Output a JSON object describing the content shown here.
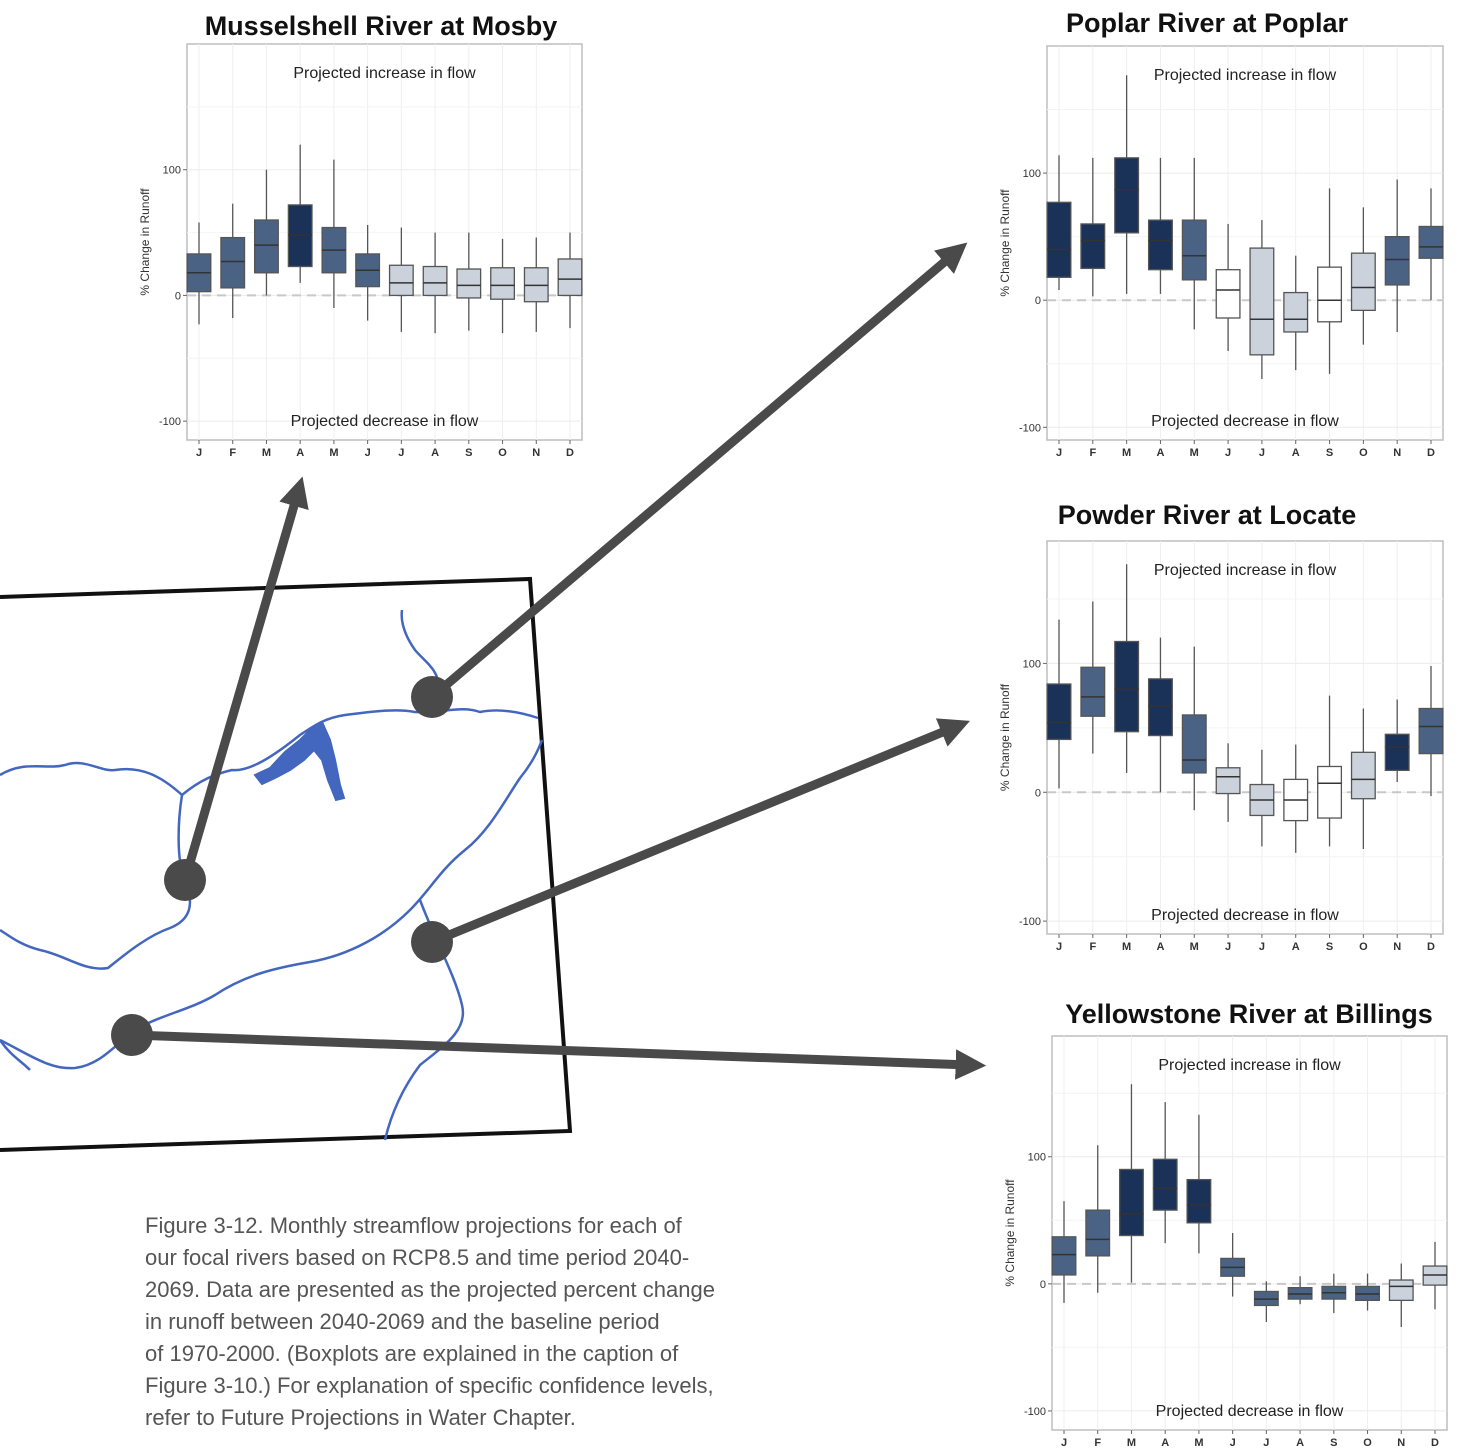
{
  "colors": {
    "dark": "#1a3258",
    "mid": "#4a6385",
    "light": "#cbd2dc",
    "white": "#ffffff",
    "river": "#4366bf",
    "arrow": "#4a4a4a"
  },
  "caption_lines": [
    "Figure 3-12. Monthly streamflow projections for each of",
    "our focal rivers based on RCP8.5 and time period 2040-",
    "2069. Data are presented as the projected percent change",
    "in runoff between 2040-2069 and the baseline period",
    "of 1970-2000. (Boxplots are explained in the caption of",
    "Figure 3-10.) For explanation of specific confidence levels,",
    "refer to Future Projections in Water Chapter."
  ],
  "chart_data": [
    {
      "type": "boxplot",
      "title": "Musselshell River at Mosby",
      "ylabel": "% Change in Runoff",
      "annotation_top": "Projected increase in flow",
      "annotation_bottom": "Projected decrease in flow",
      "categories": [
        "J",
        "F",
        "M",
        "A",
        "M",
        "J",
        "J",
        "A",
        "S",
        "O",
        "N",
        "D"
      ],
      "ylim": [
        -115,
        200
      ],
      "yticks": [
        -100,
        0,
        100
      ],
      "boxes": [
        {
          "min": -23,
          "q1": 3,
          "median": 18,
          "q3": 33,
          "max": 58,
          "color": "mid"
        },
        {
          "min": -18,
          "q1": 6,
          "median": 27,
          "q3": 46,
          "max": 73,
          "color": "mid"
        },
        {
          "min": 0,
          "q1": 18,
          "median": 40,
          "q3": 60,
          "max": 100,
          "color": "mid"
        },
        {
          "min": 10,
          "q1": 23,
          "median": 48,
          "q3": 72,
          "max": 120,
          "color": "dark"
        },
        {
          "min": -10,
          "q1": 18,
          "median": 36,
          "q3": 54,
          "max": 108,
          "color": "mid"
        },
        {
          "min": -20,
          "q1": 7,
          "median": 20,
          "q3": 33,
          "max": 56,
          "color": "mid"
        },
        {
          "min": -29,
          "q1": 0,
          "median": 10,
          "q3": 24,
          "max": 54,
          "color": "light"
        },
        {
          "min": -30,
          "q1": 0,
          "median": 10,
          "q3": 23,
          "max": 50,
          "color": "light"
        },
        {
          "min": -28,
          "q1": -2,
          "median": 8,
          "q3": 21,
          "max": 50,
          "color": "light"
        },
        {
          "min": -30,
          "q1": -3,
          "median": 8,
          "q3": 22,
          "max": 45,
          "color": "light"
        },
        {
          "min": -29,
          "q1": -5,
          "median": 8,
          "q3": 22,
          "max": 46,
          "color": "light"
        },
        {
          "min": -26,
          "q1": 0,
          "median": 13,
          "q3": 29,
          "max": 50,
          "color": "light"
        }
      ]
    },
    {
      "type": "boxplot",
      "title": "Poplar River at Poplar",
      "ylabel": "% Change in Runoff",
      "annotation_top": "Projected increase in flow",
      "annotation_bottom": "Projected decrease in flow",
      "categories": [
        "J",
        "F",
        "M",
        "A",
        "M",
        "J",
        "J",
        "A",
        "S",
        "O",
        "N",
        "D"
      ],
      "ylim": [
        -110,
        200
      ],
      "yticks": [
        -100,
        0,
        100
      ],
      "boxes": [
        {
          "min": 8,
          "q1": 18,
          "median": 40,
          "q3": 77,
          "max": 114,
          "color": "dark"
        },
        {
          "min": 3,
          "q1": 25,
          "median": 47,
          "q3": 60,
          "max": 112,
          "color": "dark"
        },
        {
          "min": 5,
          "q1": 53,
          "median": 87,
          "q3": 112,
          "max": 177,
          "color": "dark"
        },
        {
          "min": 5,
          "q1": 24,
          "median": 47,
          "q3": 63,
          "max": 112,
          "color": "dark"
        },
        {
          "min": -23,
          "q1": 16,
          "median": 35,
          "q3": 63,
          "max": 112,
          "color": "mid"
        },
        {
          "min": -40,
          "q1": -14,
          "median": 8,
          "q3": 24,
          "max": 60,
          "color": "white"
        },
        {
          "min": -62,
          "q1": -43,
          "median": -15,
          "q3": 41,
          "max": 63,
          "color": "light"
        },
        {
          "min": -55,
          "q1": -25,
          "median": -15,
          "q3": 6,
          "max": 35,
          "color": "light"
        },
        {
          "min": -58,
          "q1": -17,
          "median": 0,
          "q3": 26,
          "max": 88,
          "color": "white"
        },
        {
          "min": -35,
          "q1": -8,
          "median": 10,
          "q3": 37,
          "max": 73,
          "color": "light"
        },
        {
          "min": -25,
          "q1": 12,
          "median": 32,
          "q3": 50,
          "max": 95,
          "color": "mid"
        },
        {
          "min": 0,
          "q1": 33,
          "median": 42,
          "q3": 58,
          "max": 88,
          "color": "mid"
        }
      ]
    },
    {
      "type": "boxplot",
      "title": "Powder River at Locate",
      "ylabel": "% Change in Runoff",
      "annotation_top": "Projected increase in flow",
      "annotation_bottom": "Projected decrease in flow",
      "categories": [
        "J",
        "F",
        "M",
        "A",
        "M",
        "J",
        "J",
        "A",
        "S",
        "O",
        "N",
        "D"
      ],
      "ylim": [
        -110,
        195
      ],
      "yticks": [
        -100,
        0,
        100
      ],
      "boxes": [
        {
          "min": 3,
          "q1": 41,
          "median": 54,
          "q3": 84,
          "max": 134,
          "color": "dark"
        },
        {
          "min": 30,
          "q1": 59,
          "median": 74,
          "q3": 97,
          "max": 148,
          "color": "mid"
        },
        {
          "min": 15,
          "q1": 47,
          "median": 80,
          "q3": 117,
          "max": 177,
          "color": "dark"
        },
        {
          "min": 0,
          "q1": 44,
          "median": 67,
          "q3": 88,
          "max": 120,
          "color": "dark"
        },
        {
          "min": -14,
          "q1": 15,
          "median": 25,
          "q3": 60,
          "max": 113,
          "color": "mid"
        },
        {
          "min": -23,
          "q1": -1,
          "median": 12,
          "q3": 19,
          "max": 38,
          "color": "light"
        },
        {
          "min": -42,
          "q1": -18,
          "median": -6,
          "q3": 6,
          "max": 33,
          "color": "light"
        },
        {
          "min": -47,
          "q1": -22,
          "median": -6,
          "q3": 10,
          "max": 37,
          "color": "white"
        },
        {
          "min": -42,
          "q1": -20,
          "median": 7,
          "q3": 20,
          "max": 75,
          "color": "white"
        },
        {
          "min": -44,
          "q1": -5,
          "median": 10,
          "q3": 31,
          "max": 65,
          "color": "light"
        },
        {
          "min": 8,
          "q1": 17,
          "median": 35,
          "q3": 45,
          "max": 72,
          "color": "dark"
        },
        {
          "min": -3,
          "q1": 30,
          "median": 51,
          "q3": 65,
          "max": 98,
          "color": "mid"
        }
      ]
    },
    {
      "type": "boxplot",
      "title": "Yellowstone River at Billings",
      "ylabel": "% Change in Runoff",
      "annotation_top": "Projected increase in flow",
      "annotation_bottom": "Projected decrease in flow",
      "categories": [
        "J",
        "F",
        "M",
        "A",
        "M",
        "J",
        "J",
        "A",
        "S",
        "O",
        "N",
        "D"
      ],
      "ylim": [
        -115,
        195
      ],
      "yticks": [
        -100,
        0,
        100
      ],
      "boxes": [
        {
          "min": -15,
          "q1": 7,
          "median": 23,
          "q3": 37,
          "max": 65,
          "color": "mid"
        },
        {
          "min": -7,
          "q1": 22,
          "median": 35,
          "q3": 58,
          "max": 109,
          "color": "mid"
        },
        {
          "min": 1,
          "q1": 38,
          "median": 55,
          "q3": 90,
          "max": 157,
          "color": "dark"
        },
        {
          "min": 32,
          "q1": 58,
          "median": 75,
          "q3": 98,
          "max": 143,
          "color": "dark"
        },
        {
          "min": 24,
          "q1": 48,
          "median": 62,
          "q3": 82,
          "max": 133,
          "color": "dark"
        },
        {
          "min": -10,
          "q1": 6,
          "median": 13,
          "q3": 20,
          "max": 40,
          "color": "mid"
        },
        {
          "min": -30,
          "q1": -17,
          "median": -12,
          "q3": -6,
          "max": 2,
          "color": "mid"
        },
        {
          "min": -16,
          "q1": -12,
          "median": -8,
          "q3": -3,
          "max": 6,
          "color": "mid"
        },
        {
          "min": -23,
          "q1": -12,
          "median": -7,
          "q3": -2,
          "max": 8,
          "color": "mid"
        },
        {
          "min": -21,
          "q1": -13,
          "median": -8,
          "q3": -2,
          "max": 8,
          "color": "mid"
        },
        {
          "min": -34,
          "q1": -13,
          "median": -2,
          "q3": 3,
          "max": 16,
          "color": "light"
        },
        {
          "min": -20,
          "q1": -1,
          "median": 7,
          "q3": 14,
          "max": 33,
          "color": "light"
        }
      ]
    }
  ]
}
